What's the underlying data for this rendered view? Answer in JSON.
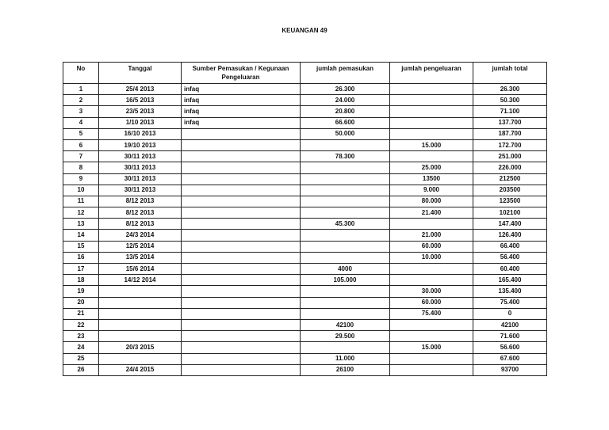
{
  "title": "KEUANGAN 49",
  "columns": [
    "No",
    "Tanggal",
    "Sumber Pemasukan / Kegunaan Pengeluaran",
    "jumlah pemasukan",
    "jumlah pengeluaran",
    "jumlah total"
  ],
  "rows": [
    [
      "1",
      "25/4 2013",
      "infaq",
      "26.300",
      "",
      "26.300"
    ],
    [
      "2",
      "16/5 2013",
      "infaq",
      "24.000",
      "",
      "50.300"
    ],
    [
      "3",
      "23/5 2013",
      "infaq",
      "20.800",
      "",
      "71.100"
    ],
    [
      "4",
      "1/10 2013",
      "infaq",
      "66.600",
      "",
      "137.700"
    ],
    [
      "5",
      "16/10 2013",
      "",
      "50.000",
      "",
      "187.700"
    ],
    [
      "6",
      "19/10 2013",
      "",
      "",
      "15.000",
      "172.700"
    ],
    [
      "7",
      "30/11 2013",
      "",
      "78.300",
      "",
      "251.000"
    ],
    [
      "8",
      "30/11 2013",
      "",
      "",
      "25.000",
      "226.000"
    ],
    [
      "9",
      "30/11 2013",
      "",
      "",
      "13500",
      "212500"
    ],
    [
      "10",
      "30/11 2013",
      "",
      "",
      "9.000",
      "203500"
    ],
    [
      "11",
      "8/12 2013",
      "",
      "",
      "80.000",
      "123500"
    ],
    [
      "12",
      "8/12 2013",
      "",
      "",
      "21.400",
      "102100"
    ],
    [
      "13",
      "8/12 2013",
      "",
      "45.300",
      "",
      "147.400"
    ],
    [
      "14",
      "24/3 2014",
      "",
      "",
      "21.000",
      "126.400"
    ],
    [
      "15",
      "12/5 2014",
      "",
      "",
      "60.000",
      "66.400"
    ],
    [
      "16",
      "13/5 2014",
      "",
      "",
      "10.000",
      "56.400"
    ],
    [
      "17",
      "15/6 2014",
      "",
      "4000",
      "",
      "60.400"
    ],
    [
      "18",
      "14/12 2014",
      "",
      "105.000",
      "",
      "165.400"
    ],
    [
      "19",
      "",
      "",
      "",
      "30.000",
      "135.400"
    ],
    [
      "20",
      "",
      "",
      "",
      "60.000",
      "75.400"
    ],
    [
      "21",
      "",
      "",
      "",
      "75.400",
      "0"
    ],
    [
      "22",
      "",
      "",
      "42100",
      "",
      "42100"
    ],
    [
      "23",
      "",
      "",
      "29.500",
      "",
      "71.600"
    ],
    [
      "24",
      "20/3 2015",
      "",
      "",
      "15.000",
      "56.600"
    ],
    [
      "25",
      "",
      "",
      "11.000",
      "",
      "67.600"
    ],
    [
      "26",
      "24/4 2015",
      "",
      "26100",
      "",
      "93700"
    ]
  ]
}
